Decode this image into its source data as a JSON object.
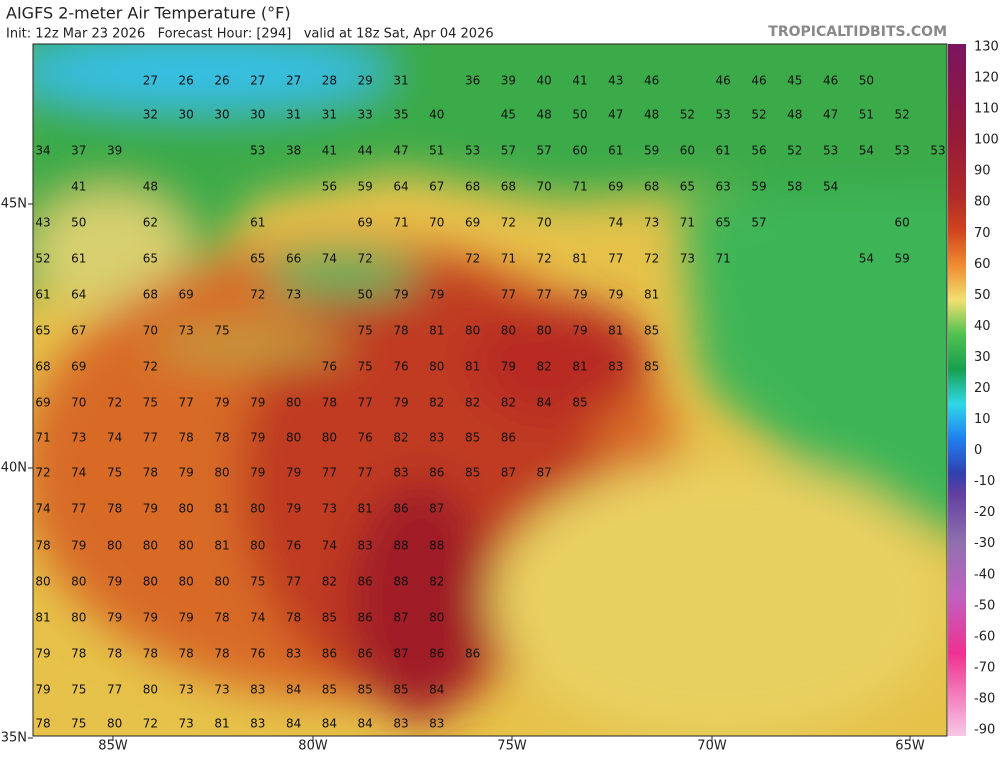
{
  "header": {
    "title": "AIGFS 2-meter Air Temperature (°F)",
    "subtitle": "Init: 12z Mar 23 2026   Forecast Hour: [294]   valid at 18z Sat, Apr 04 2026",
    "site": "TROPICALTIDBITS.COM"
  },
  "colorbar": {
    "labels": [
      130,
      120,
      110,
      100,
      90,
      80,
      70,
      60,
      50,
      40,
      30,
      20,
      10,
      0,
      -10,
      -20,
      -30,
      -40,
      -50,
      -60,
      -70,
      -80,
      -90
    ]
  },
  "axes": {
    "lon_labels": [
      "85W",
      "80W",
      "75W",
      "70W",
      "65W"
    ],
    "lat_labels": [
      "45N",
      "40N",
      "35N"
    ]
  },
  "stations": {
    "rows": [
      [
        27,
        26,
        26,
        27,
        27,
        28,
        29,
        31,
        null,
        36,
        39,
        40,
        41,
        43,
        46,
        null,
        46,
        46,
        45,
        46,
        50
      ],
      [
        32,
        30,
        30,
        30,
        31,
        31,
        33,
        35,
        40,
        null,
        45,
        48,
        50,
        47,
        48,
        52,
        53,
        52,
        48,
        47,
        51,
        52
      ],
      [
        34,
        37,
        39,
        null,
        null,
        null,
        53,
        38,
        41,
        44,
        47,
        51,
        53,
        57,
        57,
        60,
        61,
        59,
        60,
        61,
        56,
        52,
        53,
        54,
        53,
        53
      ],
      [
        41,
        null,
        48,
        null,
        null,
        null,
        null,
        56,
        59,
        64,
        67,
        68,
        68,
        70,
        71,
        69,
        68,
        65,
        63,
        59,
        58,
        54
      ],
      [
        43,
        50,
        null,
        62,
        null,
        null,
        61,
        null,
        null,
        69,
        71,
        70,
        69,
        72,
        70,
        null,
        74,
        73,
        71,
        65,
        57,
        null,
        null,
        null,
        60
      ],
      [
        52,
        61,
        null,
        65,
        null,
        null,
        65,
        66,
        74,
        72,
        null,
        null,
        72,
        71,
        72,
        81,
        77,
        72,
        73,
        71,
        null,
        null,
        null,
        54,
        59
      ],
      [
        61,
        64,
        null,
        68,
        69,
        null,
        72,
        73,
        null,
        50,
        79,
        79,
        null,
        77,
        77,
        79,
        79,
        81
      ],
      [
        65,
        67,
        null,
        70,
        73,
        75,
        null,
        null,
        null,
        75,
        78,
        81,
        80,
        80,
        80,
        79,
        81,
        85
      ],
      [
        68,
        69,
        null,
        72,
        null,
        null,
        null,
        null,
        76,
        75,
        76,
        80,
        81,
        79,
        82,
        81,
        83,
        85
      ],
      [
        69,
        70,
        72,
        75,
        77,
        79,
        79,
        80,
        78,
        77,
        79,
        82,
        82,
        82,
        84,
        85
      ],
      [
        71,
        73,
        74,
        77,
        78,
        78,
        79,
        80,
        80,
        76,
        82,
        83,
        85,
        86
      ],
      [
        72,
        74,
        75,
        78,
        79,
        80,
        79,
        79,
        77,
        77,
        83,
        86,
        85,
        87,
        87
      ],
      [
        74,
        77,
        78,
        79,
        80,
        81,
        80,
        79,
        73,
        81,
        86,
        87
      ],
      [
        78,
        79,
        80,
        80,
        80,
        81,
        80,
        76,
        74,
        83,
        88,
        88
      ],
      [
        80,
        80,
        79,
        80,
        80,
        80,
        75,
        77,
        82,
        86,
        88,
        82
      ],
      [
        81,
        80,
        79,
        79,
        79,
        78,
        74,
        78,
        85,
        86,
        87,
        80
      ],
      [
        79,
        78,
        78,
        78,
        78,
        78,
        76,
        83,
        86,
        86,
        87,
        86,
        86
      ],
      [
        79,
        75,
        77,
        80,
        73,
        73,
        83,
        84,
        85,
        85,
        85,
        84
      ],
      [
        78,
        75,
        80,
        72,
        73,
        81,
        83,
        84,
        84,
        84,
        83,
        83
      ]
    ]
  }
}
